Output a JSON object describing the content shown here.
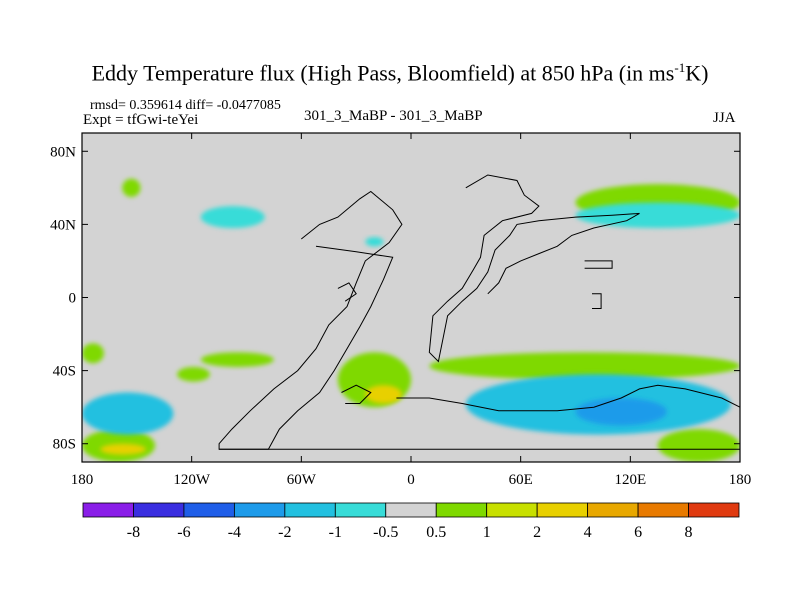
{
  "title": {
    "main": "Eddy Temperature flux (High Pass, Bloomfield) at 850 hPa (in ms",
    "sup": "-1",
    "tail": "K)"
  },
  "stats": "rmsd= 0.359614 diff= -0.0477085",
  "experiment": "Expt = tfGwi-teYei",
  "comparison": "301_3_MaBP - 301_3_MaBP",
  "season": "JJA",
  "colors": {
    "background": "#d3d3d3",
    "coast": "#000000",
    "green": "#7fd900",
    "yellow": "#e8d000",
    "cyan": "#38dcd8",
    "teal": "#22c0e0",
    "blue": "#1e9bea"
  },
  "chart_data": {
    "type": "heatmap",
    "title": "Eddy Temperature flux (High Pass, Bloomfield) at 850 hPa (in ms-1K)",
    "projection": "cylindrical equidistant",
    "xlim": [
      -180,
      180
    ],
    "ylim": [
      -90,
      90
    ],
    "xticks": [
      {
        "value": -180,
        "label": "180"
      },
      {
        "value": -120,
        "label": "120W"
      },
      {
        "value": -60,
        "label": "60W"
      },
      {
        "value": 0,
        "label": "0"
      },
      {
        "value": 60,
        "label": "60E"
      },
      {
        "value": 120,
        "label": "120E"
      },
      {
        "value": 180,
        "label": "180"
      }
    ],
    "yticks": [
      {
        "value": 80,
        "label": "80N"
      },
      {
        "value": 40,
        "label": "40N"
      },
      {
        "value": 0,
        "label": "0"
      },
      {
        "value": -40,
        "label": "40S"
      },
      {
        "value": -80,
        "label": "80S"
      }
    ],
    "colorbar": {
      "levels": [
        "-8",
        "-6",
        "-4",
        "-2",
        "-1",
        "-0.5",
        "0.5",
        "1",
        "2",
        "4",
        "6",
        "8"
      ],
      "colors": [
        "#8a1ee8",
        "#3a2ee0",
        "#1f5ee8",
        "#1e9bea",
        "#22c0e0",
        "#38dcd8",
        "#d3d3d3",
        "#7fd900",
        "#c8e000",
        "#e8d000",
        "#e8a800",
        "#e87a00",
        "#e03a10"
      ]
    },
    "regions": [
      {
        "level": "green",
        "lon": [
          -158,
          -148
        ],
        "lat": [
          55,
          65
        ]
      },
      {
        "level": "green",
        "lon": [
          -180,
          -168
        ],
        "lat": [
          -36,
          -25
        ]
      },
      {
        "level": "green",
        "lon": [
          -128,
          -110
        ],
        "lat": [
          -46,
          -38
        ]
      },
      {
        "level": "green",
        "lon": [
          -115,
          -75
        ],
        "lat": [
          -38,
          -30
        ]
      },
      {
        "level": "green",
        "lon": [
          -40,
          0
        ],
        "lat": [
          -60,
          -30
        ]
      },
      {
        "level": "yellow",
        "lon": [
          -25,
          -5
        ],
        "lat": [
          -58,
          -48
        ]
      },
      {
        "level": "green",
        "lon": [
          10,
          180
        ],
        "lat": [
          -45,
          -30
        ]
      },
      {
        "level": "green",
        "lon": [
          -180,
          -140
        ],
        "lat": [
          -90,
          -72
        ]
      },
      {
        "level": "yellow",
        "lon": [
          -170,
          -145
        ],
        "lat": [
          -86,
          -80
        ]
      },
      {
        "level": "green",
        "lon": [
          135,
          180
        ],
        "lat": [
          -90,
          -72
        ]
      },
      {
        "level": "green",
        "lon": [
          90,
          180
        ],
        "lat": [
          42,
          62
        ]
      },
      {
        "level": "cyan",
        "lon": [
          -115,
          -80
        ],
        "lat": [
          38,
          50
        ]
      },
      {
        "level": "cyan",
        "lon": [
          -25,
          -15
        ],
        "lat": [
          28,
          33
        ]
      },
      {
        "level": "cyan",
        "lon": [
          90,
          180
        ],
        "lat": [
          38,
          52
        ]
      },
      {
        "level": "teal",
        "lon": [
          -180,
          -130
        ],
        "lat": [
          -75,
          -52
        ]
      },
      {
        "level": "teal",
        "lon": [
          30,
          175
        ],
        "lat": [
          -75,
          -42
        ]
      },
      {
        "level": "blue",
        "lon": [
          90,
          140
        ],
        "lat": [
          -70,
          -55
        ]
      }
    ]
  }
}
